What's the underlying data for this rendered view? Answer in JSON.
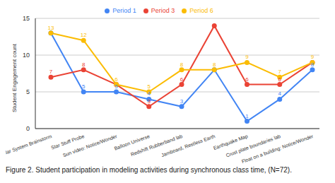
{
  "chart_data": {
    "type": "line",
    "caption": "Figure 2. Student participation in modeling activities during synchronous class time, (N=72).",
    "y_label": "Student Engagement count",
    "categories": [
      "Solar System Brainstorm",
      "Star Stuff Probe",
      "Sun video: Notice/Wonder",
      "Balloon Universe",
      "Redshift Rubberband lab",
      "Jamboard, Restless Earth",
      "Earthquake Map",
      "Crust plate boundaries lab",
      "Float on a building: Notice/Wonder"
    ],
    "series": [
      {
        "name": "Period 1",
        "color": "#4285f4",
        "marker": "circle",
        "values": [
          13,
          5,
          5,
          4,
          3,
          8,
          1,
          4,
          8
        ],
        "value_labels": [
          null,
          "5",
          "5",
          "4",
          "3",
          null,
          "1",
          "4",
          "8"
        ]
      },
      {
        "name": "Period 3",
        "color": "#ea4335",
        "marker": "circle",
        "values": [
          7,
          8,
          6,
          3,
          6,
          14,
          6,
          6,
          9
        ],
        "value_labels": [
          "7",
          "8",
          null,
          "3",
          "6",
          null,
          "6",
          "6",
          null
        ]
      },
      {
        "name": "Period 6",
        "color": "#fbbc04",
        "marker": "circle",
        "values": [
          13,
          12,
          6,
          5,
          8,
          8,
          9,
          7,
          9
        ],
        "value_labels": [
          "13",
          "12",
          "6",
          "5",
          "8",
          "8",
          "9",
          "7",
          "9"
        ]
      }
    ],
    "ylim": [
      0,
      15
    ],
    "yticks": [
      0,
      5,
      10,
      15
    ],
    "grid": true,
    "legend": "top",
    "data_labels": true
  }
}
